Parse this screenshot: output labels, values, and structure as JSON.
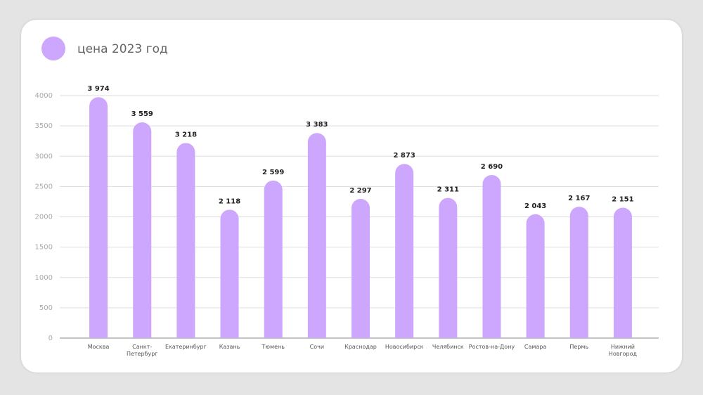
{
  "chart_data": {
    "type": "bar",
    "categories": [
      "Москва",
      "Санкт-\nПетербург",
      "Екатеринбург",
      "Казань",
      "Тюмень",
      "Сочи",
      "Краснодар",
      "Новосибирск",
      "Челябинск",
      "Ростов-на-Дону",
      "Самара",
      "Пермь",
      "Нижний\nНовгород"
    ],
    "series": [
      {
        "name": "цена 2023 год",
        "color": "#cda6fd",
        "values": [
          3974,
          3559,
          3218,
          2118,
          2599,
          3383,
          2297,
          2873,
          2311,
          2690,
          2043,
          2167,
          2151
        ],
        "value_labels": [
          "3 974",
          "3 559",
          "3 218",
          "2 118",
          "2 599",
          "3 383",
          "2 297",
          "2 873",
          "2 311",
          "2 690",
          "2 043",
          "2 167",
          "2 151"
        ]
      }
    ],
    "ylim": [
      0,
      4000
    ],
    "yticks": [
      0,
      500,
      1000,
      1500,
      2000,
      2500,
      3000,
      3500,
      4000
    ],
    "grid": true
  }
}
